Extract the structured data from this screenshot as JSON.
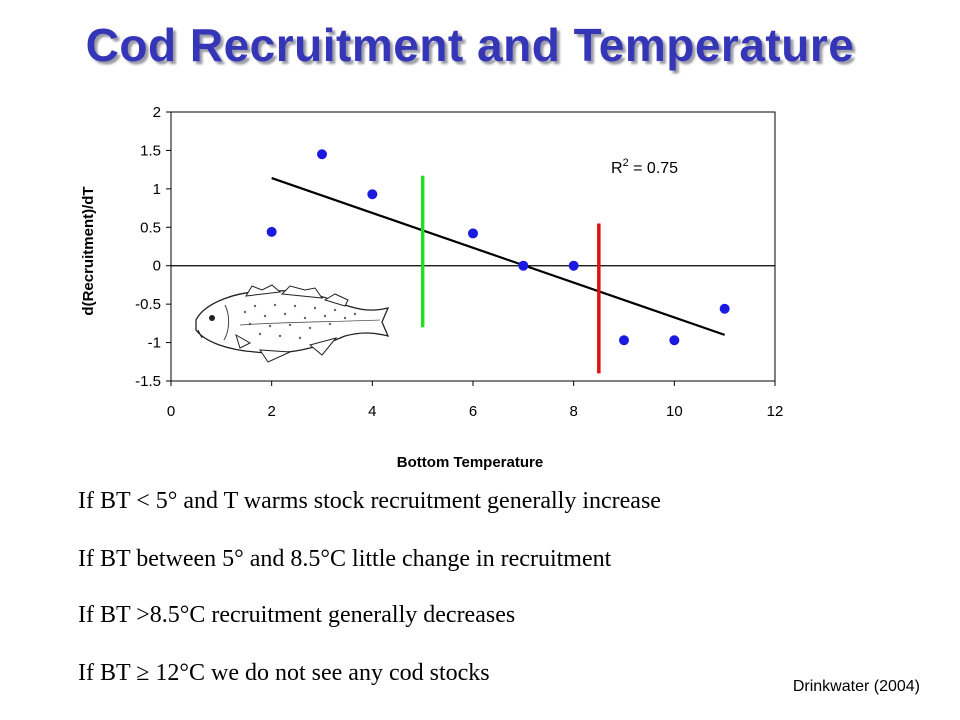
{
  "slide": {
    "title": "Cod Recruitment and Temperature",
    "bullets": [
      "If BT < 5° and T warms stock recruitment generally increase",
      "If BT between 5° and 8.5°C little change in recruitment",
      "If BT >8.5°C  recruitment generally decreases",
      "If BT ≥ 12°C we do not see any cod stocks"
    ],
    "citation": "Drinkwater (2004)"
  },
  "chart_data": {
    "type": "scatter",
    "xlabel": "Bottom Temperature",
    "ylabel": "d(Recruitment)/dT",
    "xlim": [
      0,
      12
    ],
    "ylim": [
      -1.5,
      2
    ],
    "xticks": [
      0,
      2,
      4,
      6,
      8,
      10,
      12
    ],
    "yticks": [
      -1.5,
      -1,
      -0.5,
      0,
      0.5,
      1,
      1.5,
      2
    ],
    "ytick_labels": [
      "-1.5",
      "-1",
      "-0.5",
      "0",
      "0.5",
      "1",
      "1.5",
      "2"
    ],
    "points": [
      {
        "x": 2,
        "y": 0.44
      },
      {
        "x": 3,
        "y": 1.45
      },
      {
        "x": 4,
        "y": 0.93
      },
      {
        "x": 6,
        "y": 0.42
      },
      {
        "x": 7,
        "y": 0.0
      },
      {
        "x": 8,
        "y": 0.0
      },
      {
        "x": 9,
        "y": -0.97
      },
      {
        "x": 10,
        "y": -0.97
      },
      {
        "x": 11,
        "y": -0.56
      }
    ],
    "trendline": {
      "x": [
        2,
        11
      ],
      "y": [
        1.14,
        -0.9
      ]
    },
    "r_squared_label": "R",
    "r_squared_exp": "2",
    "r_squared_value": " = 0.75",
    "vertical_markers": [
      {
        "x": 5.0,
        "y": [
          -0.8,
          1.17
        ],
        "color": "#22dd22"
      },
      {
        "x": 8.5,
        "y": [
          -1.4,
          0.55
        ],
        "color": "#e01010"
      }
    ],
    "point_color": "#1a1ae0",
    "zero_line": true,
    "grid": false
  }
}
